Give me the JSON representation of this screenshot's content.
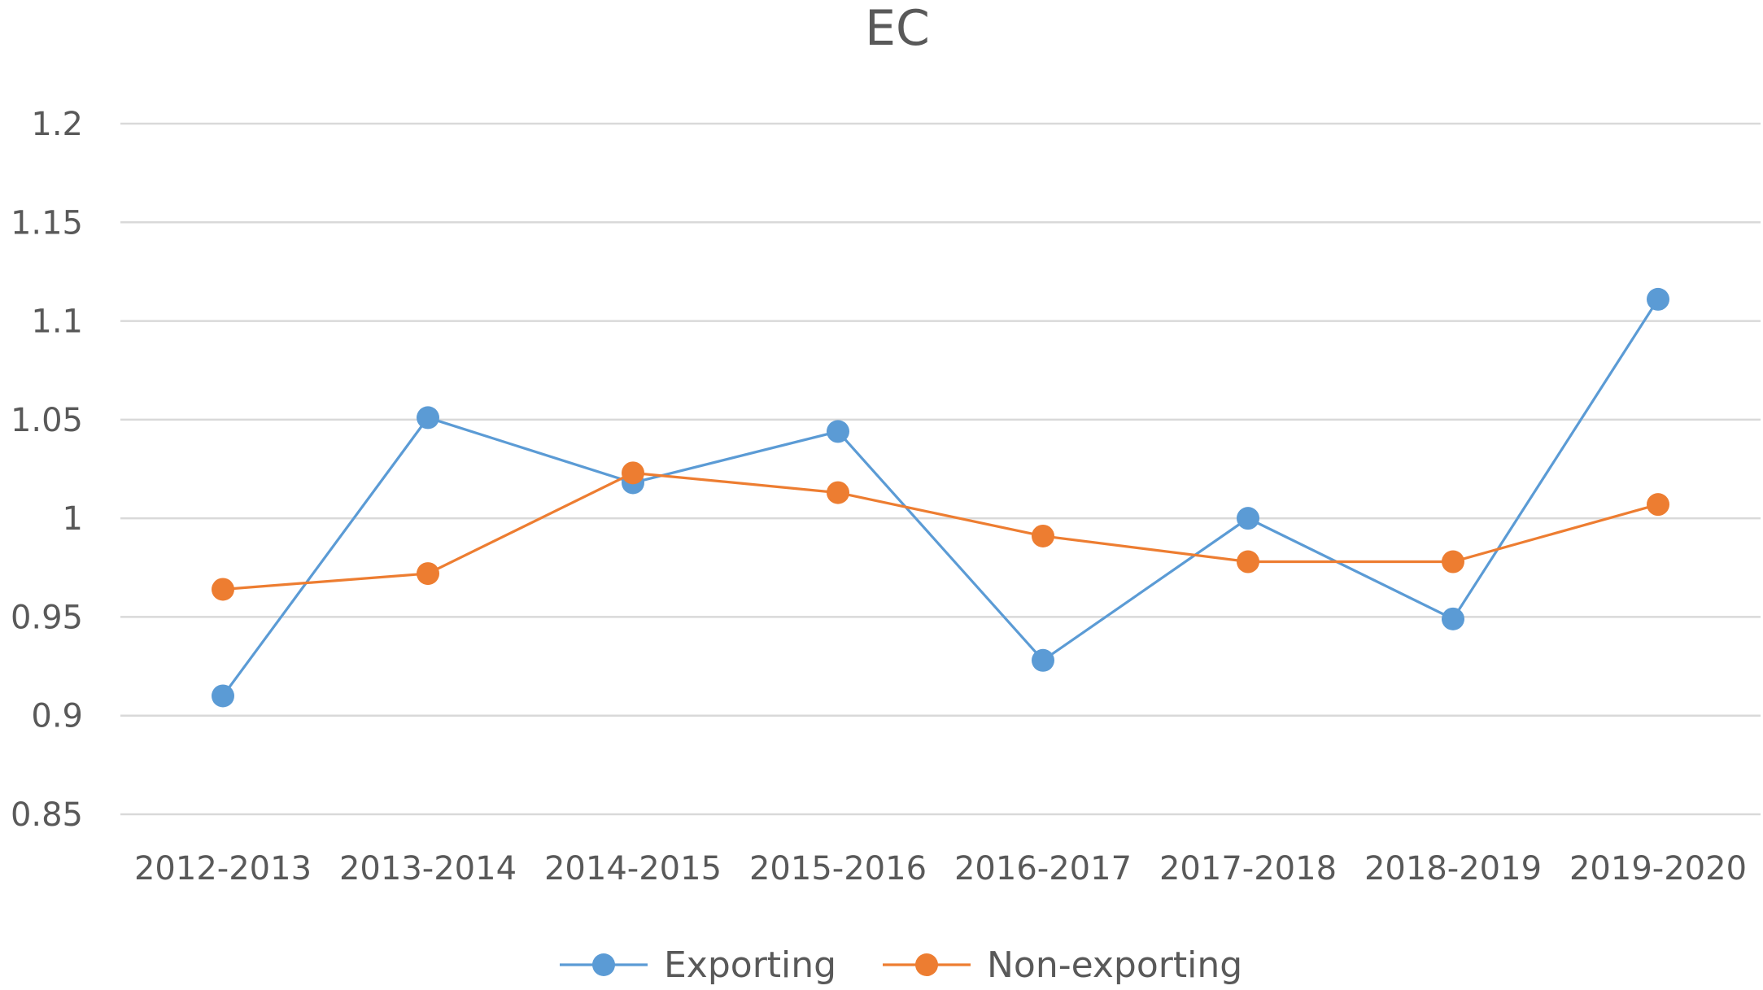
{
  "chart_data": {
    "type": "line",
    "title": "EC",
    "xlabel": "",
    "ylabel": "",
    "categories": [
      "2012-2013",
      "2013-2014",
      "2014-2015",
      "2015-2016",
      "2016-2017",
      "2017-2018",
      "2018-2019",
      "2019-2020"
    ],
    "ylim": [
      0.85,
      1.2
    ],
    "yticks": [
      "0.85",
      "0.9",
      "0.95",
      "1",
      "1.05",
      "1.1",
      "1.15",
      "1.2"
    ],
    "grid": true,
    "legend_position": "bottom",
    "series": [
      {
        "name": "Exporting",
        "color": "#5b9bd5",
        "values": [
          0.91,
          1.051,
          1.018,
          1.044,
          0.928,
          1.0,
          0.949,
          1.111
        ]
      },
      {
        "name": "Non-exporting",
        "color": "#ed7d31",
        "values": [
          0.964,
          0.972,
          1.023,
          1.013,
          0.991,
          0.978,
          0.978,
          1.007
        ]
      }
    ]
  }
}
